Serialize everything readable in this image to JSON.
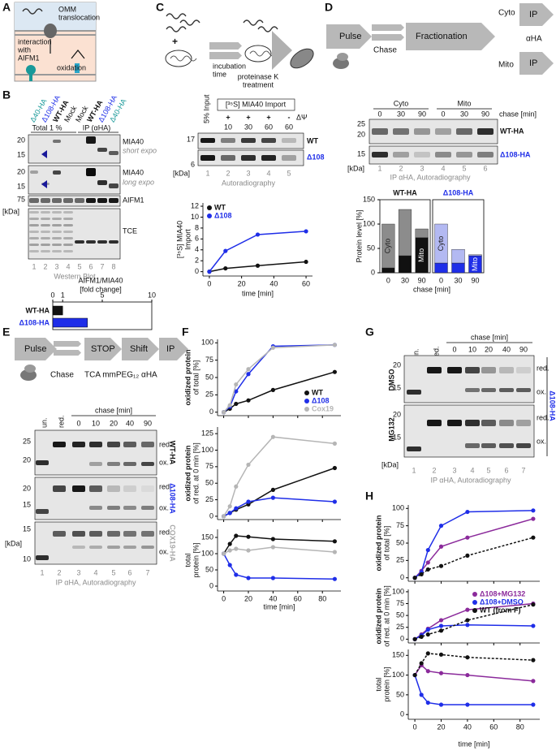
{
  "A": {
    "letter": "A",
    "omm": [
      "OMM",
      "translocation"
    ],
    "interaction": [
      "interaction",
      "with",
      "AIFM1"
    ],
    "oxidation": "oxidation"
  },
  "B": {
    "letter": "B",
    "lanes": [
      "Δ40-HA",
      "Δ108-HA",
      "WT-HA",
      "Mock",
      "Mock",
      "WT-HA",
      "Δ108-HA",
      "Δ40-HA"
    ],
    "total": "Total 1 %",
    "ip": "IP (αHA)",
    "blots": [
      {
        "name": "MIA40",
        "note": "short expo"
      },
      {
        "name": "MIA40",
        "note": "long expo"
      },
      {
        "name": "AIFM1"
      },
      {
        "name": "TCE"
      }
    ],
    "markers": [
      20,
      15,
      20,
      15,
      75
    ],
    "kda": "[kDa]",
    "lane_numbers": [
      1,
      2,
      3,
      4,
      5,
      6,
      7,
      8
    ],
    "method": "Western Blot",
    "chart": {
      "type": "bar",
      "title": "AIFM1/MIA40",
      "subtitle": "[fold change]",
      "categories": [
        "WT-HA",
        "Δ108-HA"
      ],
      "colors": [
        "#111111",
        "#1f2ee8"
      ],
      "values": [
        1,
        3.5
      ],
      "xlim": [
        0,
        10
      ],
      "xticks": [
        0,
        1,
        5,
        10
      ]
    }
  },
  "C": {
    "letter": "C",
    "plus": "+",
    "incubation": [
      "incubation",
      "time"
    ],
    "proteinase": [
      "proteinase K",
      "treatment"
    ],
    "input": "5% Input",
    "import": "[³⁵S] MIA40 Import",
    "dpsi": "ΔΨ",
    "dpsi_states": [
      "+",
      "+",
      "+",
      "-"
    ],
    "times": [
      10,
      30,
      60,
      60
    ],
    "markers": [
      17,
      6
    ],
    "kda": "[kDa]",
    "rows": [
      "WT",
      "Δ108"
    ],
    "lane_numbers": [
      1,
      2,
      3,
      4,
      5
    ],
    "method": "Autoradiography",
    "chart": {
      "type": "line",
      "x": [
        0,
        10,
        30,
        60
      ],
      "xlim": [
        -4,
        64
      ],
      "xticks": [
        0,
        20,
        40,
        60
      ],
      "ylim": [
        -0.8,
        12.6
      ],
      "yticks": [
        0,
        2,
        4,
        6,
        8,
        10,
        12
      ],
      "ylabel": [
        "[³⁵S] MIA40",
        "Import"
      ],
      "xlabel": "time [min]",
      "legend": "upper-left",
      "series": [
        {
          "name": "WT",
          "color": "#111111",
          "values": [
            0,
            0.6,
            1.1,
            1.8
          ]
        },
        {
          "name": "Δ108",
          "color": "#1f2ee8",
          "values": [
            0,
            3.8,
            6.8,
            7.4
          ]
        }
      ]
    }
  },
  "D": {
    "letter": "D",
    "flow": {
      "pulse": "Pulse",
      "chase": "Chase",
      "fractionation": "Fractionation",
      "cyto": "Cyto",
      "mito": "Mito",
      "ip": [
        "IP",
        "IP"
      ],
      "antibody": "αHA"
    },
    "blot": {
      "fractions": [
        "Cyto",
        "Mito"
      ],
      "chase_label": "chase [min]",
      "times": [
        0,
        30,
        90,
        0,
        30,
        90
      ],
      "markers": [
        25,
        20,
        15
      ],
      "kda": "[kDa]",
      "rows": [
        "WT-HA",
        "Δ108-HA"
      ],
      "lane_numbers": [
        1,
        2,
        3,
        4,
        5,
        6
      ],
      "method": "IP αHA, Autoradiography"
    },
    "chart": {
      "type": "stacked_bar",
      "ylabel": "Protein level [%]",
      "xlabel": "chase [min]",
      "ylim": [
        0,
        150
      ],
      "yticks": [
        0,
        50,
        100,
        150
      ],
      "groups": [
        {
          "name": "WT-HA",
          "color": "#111111",
          "categories": [
            0,
            30,
            90
          ],
          "series": [
            {
              "name": "Mito",
              "color": "#111111",
              "values": [
                10,
                35,
                72
              ]
            },
            {
              "name": "Cyto",
              "color": "#8c8c8c",
              "values": [
                90,
                95,
                18
              ]
            }
          ]
        },
        {
          "name": "Δ108-HA",
          "color": "#1f2ee8",
          "categories": [
            0,
            30,
            90
          ],
          "series": [
            {
              "name": "Mito",
              "color": "#1f2ee8",
              "values": [
                20,
                20,
                35
              ]
            },
            {
              "name": "Cyto",
              "color": "#b3b9f2",
              "values": [
                80,
                28,
                2
              ]
            }
          ]
        }
      ]
    }
  },
  "E": {
    "letter": "E",
    "flow": {
      "pulse": "Pulse",
      "chase": "Chase",
      "stop": "STOP",
      "shift": "Shift",
      "ip": "IP",
      "reagents": "TCA mmPEG₁₂ αHA"
    },
    "blot": {
      "controls": [
        "un.",
        "red."
      ],
      "chase_label": "chase [min]",
      "times": [
        0,
        10,
        20,
        40,
        90
      ],
      "rows": [
        {
          "name": "WT-HA",
          "markers": [
            25,
            20
          ]
        },
        {
          "name": "Δ108-HA",
          "markers": [
            20,
            15
          ]
        },
        {
          "name": "COX19-HA",
          "markers": [
            15,
            10
          ]
        }
      ],
      "states": [
        "red.",
        "ox."
      ],
      "kda": "[kDa]",
      "lane_numbers": [
        1,
        2,
        3,
        4,
        5,
        6,
        7
      ],
      "method": "IP αHA, Autoradiography"
    }
  },
  "F": {
    "letter": "F",
    "xlabel": "time [min]",
    "charts": [
      {
        "type": "line",
        "x": [
          0,
          5,
          10,
          20,
          40,
          90
        ],
        "xlim": [
          -5,
          95
        ],
        "xticks": [
          0,
          20,
          40,
          60,
          80
        ],
        "ylim": [
          -5,
          105
        ],
        "yticks": [
          0,
          25,
          50,
          75,
          100
        ],
        "ylabel": [
          "oxidized protein",
          "of total [%]"
        ],
        "legend": "lower-right",
        "series": [
          {
            "name": "WT",
            "color": "#111111",
            "values": [
              0,
              5,
              12,
              17,
              32,
              58
            ]
          },
          {
            "name": "Δ108",
            "color": "#1f2ee8",
            "values": [
              0,
              8,
              30,
              55,
              95,
              97
            ]
          },
          {
            "name": "Cox19",
            "color": "#b5b5b5",
            "values": [
              0,
              10,
              40,
              62,
              93,
              97
            ]
          }
        ]
      },
      {
        "type": "line",
        "x": [
          0,
          5,
          10,
          20,
          40,
          90
        ],
        "xlim": [
          -5,
          95
        ],
        "xticks": [
          0,
          20,
          40,
          60,
          80
        ],
        "ylim": [
          -5,
          135
        ],
        "yticks": [
          0,
          25,
          50,
          75,
          100,
          125
        ],
        "ylabel": [
          "oxidized protein",
          "of red. at 0 min [%]"
        ],
        "series": [
          {
            "name": "WT",
            "color": "#111111",
            "values": [
              0,
              5,
              10,
              18,
              40,
              73
            ]
          },
          {
            "name": "Δ108",
            "color": "#1f2ee8",
            "values": [
              0,
              5,
              12,
              22,
              28,
              22
            ]
          },
          {
            "name": "Cox19",
            "color": "#b5b5b5",
            "values": [
              0,
              15,
              45,
              78,
              120,
              110
            ]
          }
        ]
      },
      {
        "type": "line",
        "x": [
          0,
          5,
          10,
          20,
          40,
          90
        ],
        "xlim": [
          -5,
          95
        ],
        "xticks": [
          0,
          20,
          40,
          60,
          80
        ],
        "ylim": [
          -15,
          175
        ],
        "yticks": [
          0,
          50,
          100,
          150
        ],
        "ylabel": [
          "total",
          "protein [%]"
        ],
        "series": [
          {
            "name": "WT",
            "color": "#111111",
            "values": [
              100,
              130,
              155,
              152,
              145,
              138
            ]
          },
          {
            "name": "Δ108",
            "color": "#1f2ee8",
            "values": [
              100,
              65,
              35,
              25,
              25,
              22
            ]
          },
          {
            "name": "Cox19",
            "color": "#b5b5b5",
            "values": [
              100,
              110,
              115,
              110,
              120,
              105
            ]
          }
        ]
      }
    ]
  },
  "G": {
    "letter": "G",
    "controls": [
      "un.",
      "red."
    ],
    "chase_label": "chase [min]",
    "times": [
      0,
      10,
      20,
      40,
      90
    ],
    "rows": [
      {
        "name": "DMSO",
        "markers": [
          20,
          15
        ]
      },
      {
        "name": "MG132",
        "markers": [
          20,
          15
        ]
      }
    ],
    "states": [
      "red.",
      "ox."
    ],
    "construct": "Δ108-HA",
    "kda": "[kDa]",
    "lane_numbers": [
      1,
      2,
      3,
      4,
      5,
      6,
      7
    ],
    "method": "IP αHA, Autoradiography"
  },
  "H": {
    "letter": "H",
    "xlabel": "time [min]",
    "charts": [
      {
        "type": "line",
        "x": [
          0,
          5,
          10,
          20,
          40,
          90
        ],
        "xlim": [
          -5,
          95
        ],
        "xticks": [
          0,
          20,
          40,
          60,
          80
        ],
        "ylim": [
          -5,
          105
        ],
        "yticks": [
          0,
          25,
          50,
          75,
          100
        ],
        "ylabel": [
          "oxidized protein",
          "of total [%]"
        ],
        "series": [
          {
            "name": "Δ108+MG132",
            "color": "#8b2a9b",
            "values": [
              0,
              10,
              22,
              45,
              58,
              85
            ]
          },
          {
            "name": "Δ108+DMSO",
            "color": "#1f2ee8",
            "values": [
              0,
              8,
              40,
              75,
              95,
              97
            ]
          },
          {
            "name": "WT (from F)",
            "color": "#111111",
            "dashed": true,
            "values": [
              0,
              5,
              12,
              17,
              32,
              58
            ]
          }
        ]
      },
      {
        "type": "line",
        "x": [
          0,
          5,
          10,
          20,
          40,
          90
        ],
        "xlim": [
          -5,
          95
        ],
        "xticks": [
          0,
          20,
          40,
          60,
          80
        ],
        "ylim": [
          -8,
          105
        ],
        "yticks": [
          0,
          25,
          50,
          75,
          100
        ],
        "ylabel": [
          "oxidized protein",
          "of red. at 0 min [%]"
        ],
        "legend": "upper-right",
        "series": [
          {
            "name": "Δ108+MG132",
            "color": "#8b2a9b",
            "values": [
              0,
              10,
              22,
              40,
              62,
              75
            ]
          },
          {
            "name": "Δ108+DMSO",
            "color": "#1f2ee8",
            "values": [
              0,
              8,
              20,
              28,
              30,
              28
            ]
          },
          {
            "name": "WT (from F)",
            "color": "#111111",
            "dashed": true,
            "values": [
              0,
              5,
              10,
              18,
              40,
              73
            ]
          }
        ]
      },
      {
        "type": "line",
        "x": [
          0,
          5,
          10,
          20,
          40,
          90
        ],
        "xlim": [
          -5,
          95
        ],
        "xticks": [
          0,
          20,
          40,
          60,
          80
        ],
        "ylim": [
          -12,
          165
        ],
        "yticks": [
          0,
          50,
          100,
          150
        ],
        "ylabel": [
          "total",
          "protein [%]"
        ],
        "series": [
          {
            "name": "Δ108+MG132",
            "color": "#8b2a9b",
            "values": [
              100,
              125,
              110,
              105,
              100,
              85
            ]
          },
          {
            "name": "Δ108+DMSO",
            "color": "#1f2ee8",
            "values": [
              100,
              50,
              30,
              25,
              25,
              25
            ]
          },
          {
            "name": "WT (from F)",
            "color": "#111111",
            "dashed": true,
            "values": [
              100,
              130,
              155,
              152,
              145,
              138
            ]
          }
        ]
      }
    ]
  }
}
